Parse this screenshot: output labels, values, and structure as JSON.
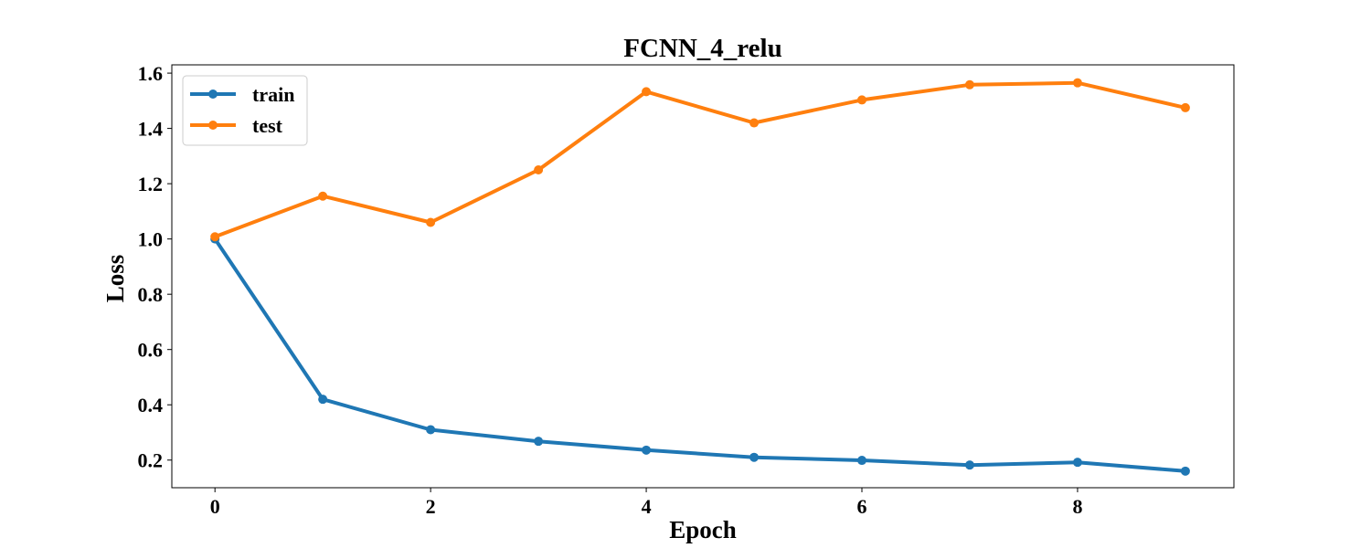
{
  "chart_data": {
    "type": "line",
    "title": "FCNN_4_relu",
    "xlabel": "Epoch",
    "ylabel": "Loss",
    "x": [
      0,
      1,
      2,
      3,
      4,
      5,
      6,
      7,
      8,
      9
    ],
    "xlim": [
      -0.4,
      9.45
    ],
    "ylim": [
      0.1,
      1.63
    ],
    "xticks": [
      0,
      2,
      4,
      6,
      8
    ],
    "xtick_labels": [
      "0",
      "2",
      "4",
      "6",
      "8"
    ],
    "yticks": [
      0.2,
      0.4,
      0.6,
      0.8,
      1.0,
      1.2,
      1.4,
      1.6
    ],
    "ytick_labels": [
      "0.2",
      "0.4",
      "0.6",
      "0.8",
      "1.0",
      "1.2",
      "1.4",
      "1.6"
    ],
    "grid": false,
    "legend_position": "top-left",
    "series": [
      {
        "name": "train",
        "color": "#1f77b4",
        "marker": "circle",
        "values": [
          1.0,
          0.42,
          0.31,
          0.268,
          0.236,
          0.21,
          0.199,
          0.182,
          0.192,
          0.16
        ]
      },
      {
        "name": "test",
        "color": "#ff7f0e",
        "marker": "circle",
        "values": [
          1.008,
          1.155,
          1.06,
          1.25,
          1.533,
          1.42,
          1.503,
          1.558,
          1.565,
          1.475
        ]
      }
    ]
  }
}
